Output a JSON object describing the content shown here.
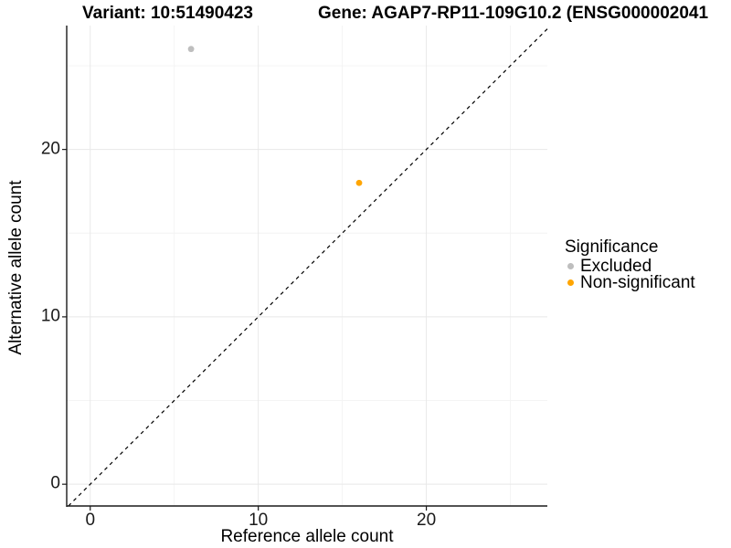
{
  "header": {
    "variant_title": "Variant: 10:51490423",
    "gene_title": "Gene: AGAP7-RP11-109G10.2 (ENSG000002041"
  },
  "chart_data": {
    "type": "scatter",
    "title_left": "Variant: 10:51490423",
    "title_right": "Gene: AGAP7-RP11-109G10.2 (ENSG000002041",
    "xlabel": "Reference allele count",
    "ylabel": "Alternative allele count",
    "xlim": [
      -1.4,
      27.2
    ],
    "ylim": [
      -1.3,
      27.4
    ],
    "x_ticks": [
      0,
      10,
      20
    ],
    "y_ticks": [
      0,
      10,
      20
    ],
    "minor_ticks": [
      5,
      15,
      25
    ],
    "grid": true,
    "identity_line": {
      "equation": "y = x",
      "style": "dashed",
      "color": "#000000"
    },
    "series": [
      {
        "name": "Excluded",
        "color": "#BEBEBE",
        "points": [
          {
            "x": 6,
            "y": 26
          }
        ]
      },
      {
        "name": "Non-significant",
        "color": "#FFA500",
        "points": [
          {
            "x": 16,
            "y": 18
          }
        ]
      }
    ],
    "legend": {
      "title": "Significance",
      "position": "right"
    },
    "style": {
      "grid_major": "#E8E8E8",
      "grid_minor": "#F4F4F4",
      "axis_line": "#1a1a1a",
      "tick_mark": "#1a1a1a",
      "point_radius": 3.4
    }
  }
}
